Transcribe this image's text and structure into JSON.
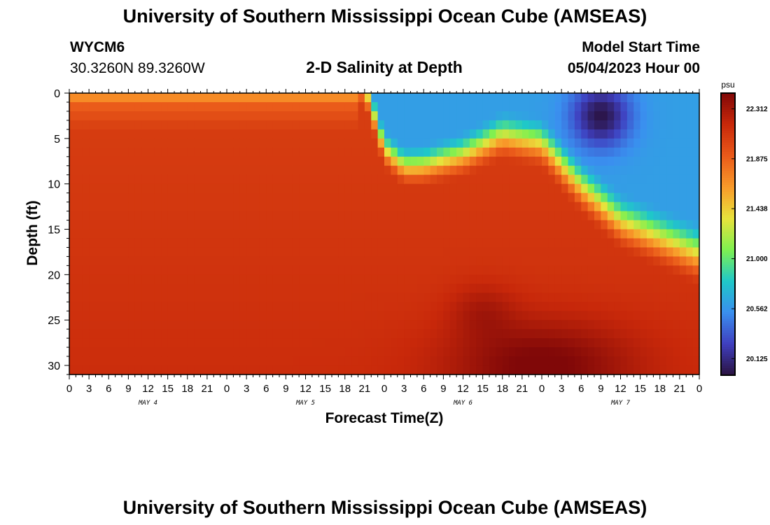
{
  "page": {
    "title_top": "University of Southern Mississippi Ocean Cube (AMSEAS)",
    "title_bottom": "University of Southern Mississippi Ocean Cube (AMSEAS)",
    "station": "WYCM6",
    "coords": "30.3260N  89.3260W",
    "model_start_label": "Model Start Time",
    "model_start_value": "05/04/2023 Hour 00"
  },
  "chart_data": {
    "type": "heatmap",
    "title": "2-D Salinity at Depth",
    "xlabel": "Forecast Time(Z)",
    "ylabel": "Depth (ft)",
    "x_tick_labels": [
      "0",
      "3",
      "6",
      "9",
      "12",
      "15",
      "18",
      "21",
      "0",
      "3",
      "6",
      "9",
      "12",
      "15",
      "18",
      "21",
      "0",
      "3",
      "6",
      "9",
      "12",
      "15",
      "18",
      "21",
      "0",
      "3",
      "6",
      "9",
      "12",
      "15",
      "18",
      "21",
      "0"
    ],
    "xlim_hours": [
      0,
      96
    ],
    "date_labels": [
      {
        "label": "MAY 4",
        "hour": 12
      },
      {
        "label": "MAY 5",
        "hour": 36
      },
      {
        "label": "MAY 6",
        "hour": 60
      },
      {
        "label": "MAY 7",
        "hour": 84
      }
    ],
    "y_tick_labels": [
      "0",
      "5",
      "10",
      "15",
      "20",
      "25",
      "30"
    ],
    "ylim": [
      0,
      31
    ],
    "y_inverted": true,
    "colorbar": {
      "unit": "psu",
      "range": [
        19.98,
        22.45
      ],
      "tick_labels": [
        "22.312",
        "21.875",
        "21.438",
        "21.000",
        "20.562",
        "20.125"
      ]
    },
    "colormap": [
      "#2a1240",
      "#3f3fbf",
      "#3a8fef",
      "#1fc8c8",
      "#7ff050",
      "#e8e23c",
      "#f99a2a",
      "#ea5a1a",
      "#c8280a",
      "#800808"
    ],
    "surface_layer": {
      "hours": [
        0,
        12,
        18,
        24,
        33,
        42,
        45,
        48,
        51,
        54,
        60,
        66,
        72,
        78,
        84,
        90,
        96
      ],
      "depth_ft": [
        0,
        0,
        0,
        0,
        0,
        0,
        0,
        7,
        9,
        9,
        8,
        6,
        7,
        12,
        16,
        18,
        20
      ]
    },
    "surface_value": 20.6,
    "deep_value": 22.05,
    "min_region": {
      "hour": 81,
      "depth_ft": 2.5,
      "value": 20.0
    },
    "max_region": {
      "hour": 72,
      "depth_ft": 30,
      "value": 22.42
    }
  }
}
